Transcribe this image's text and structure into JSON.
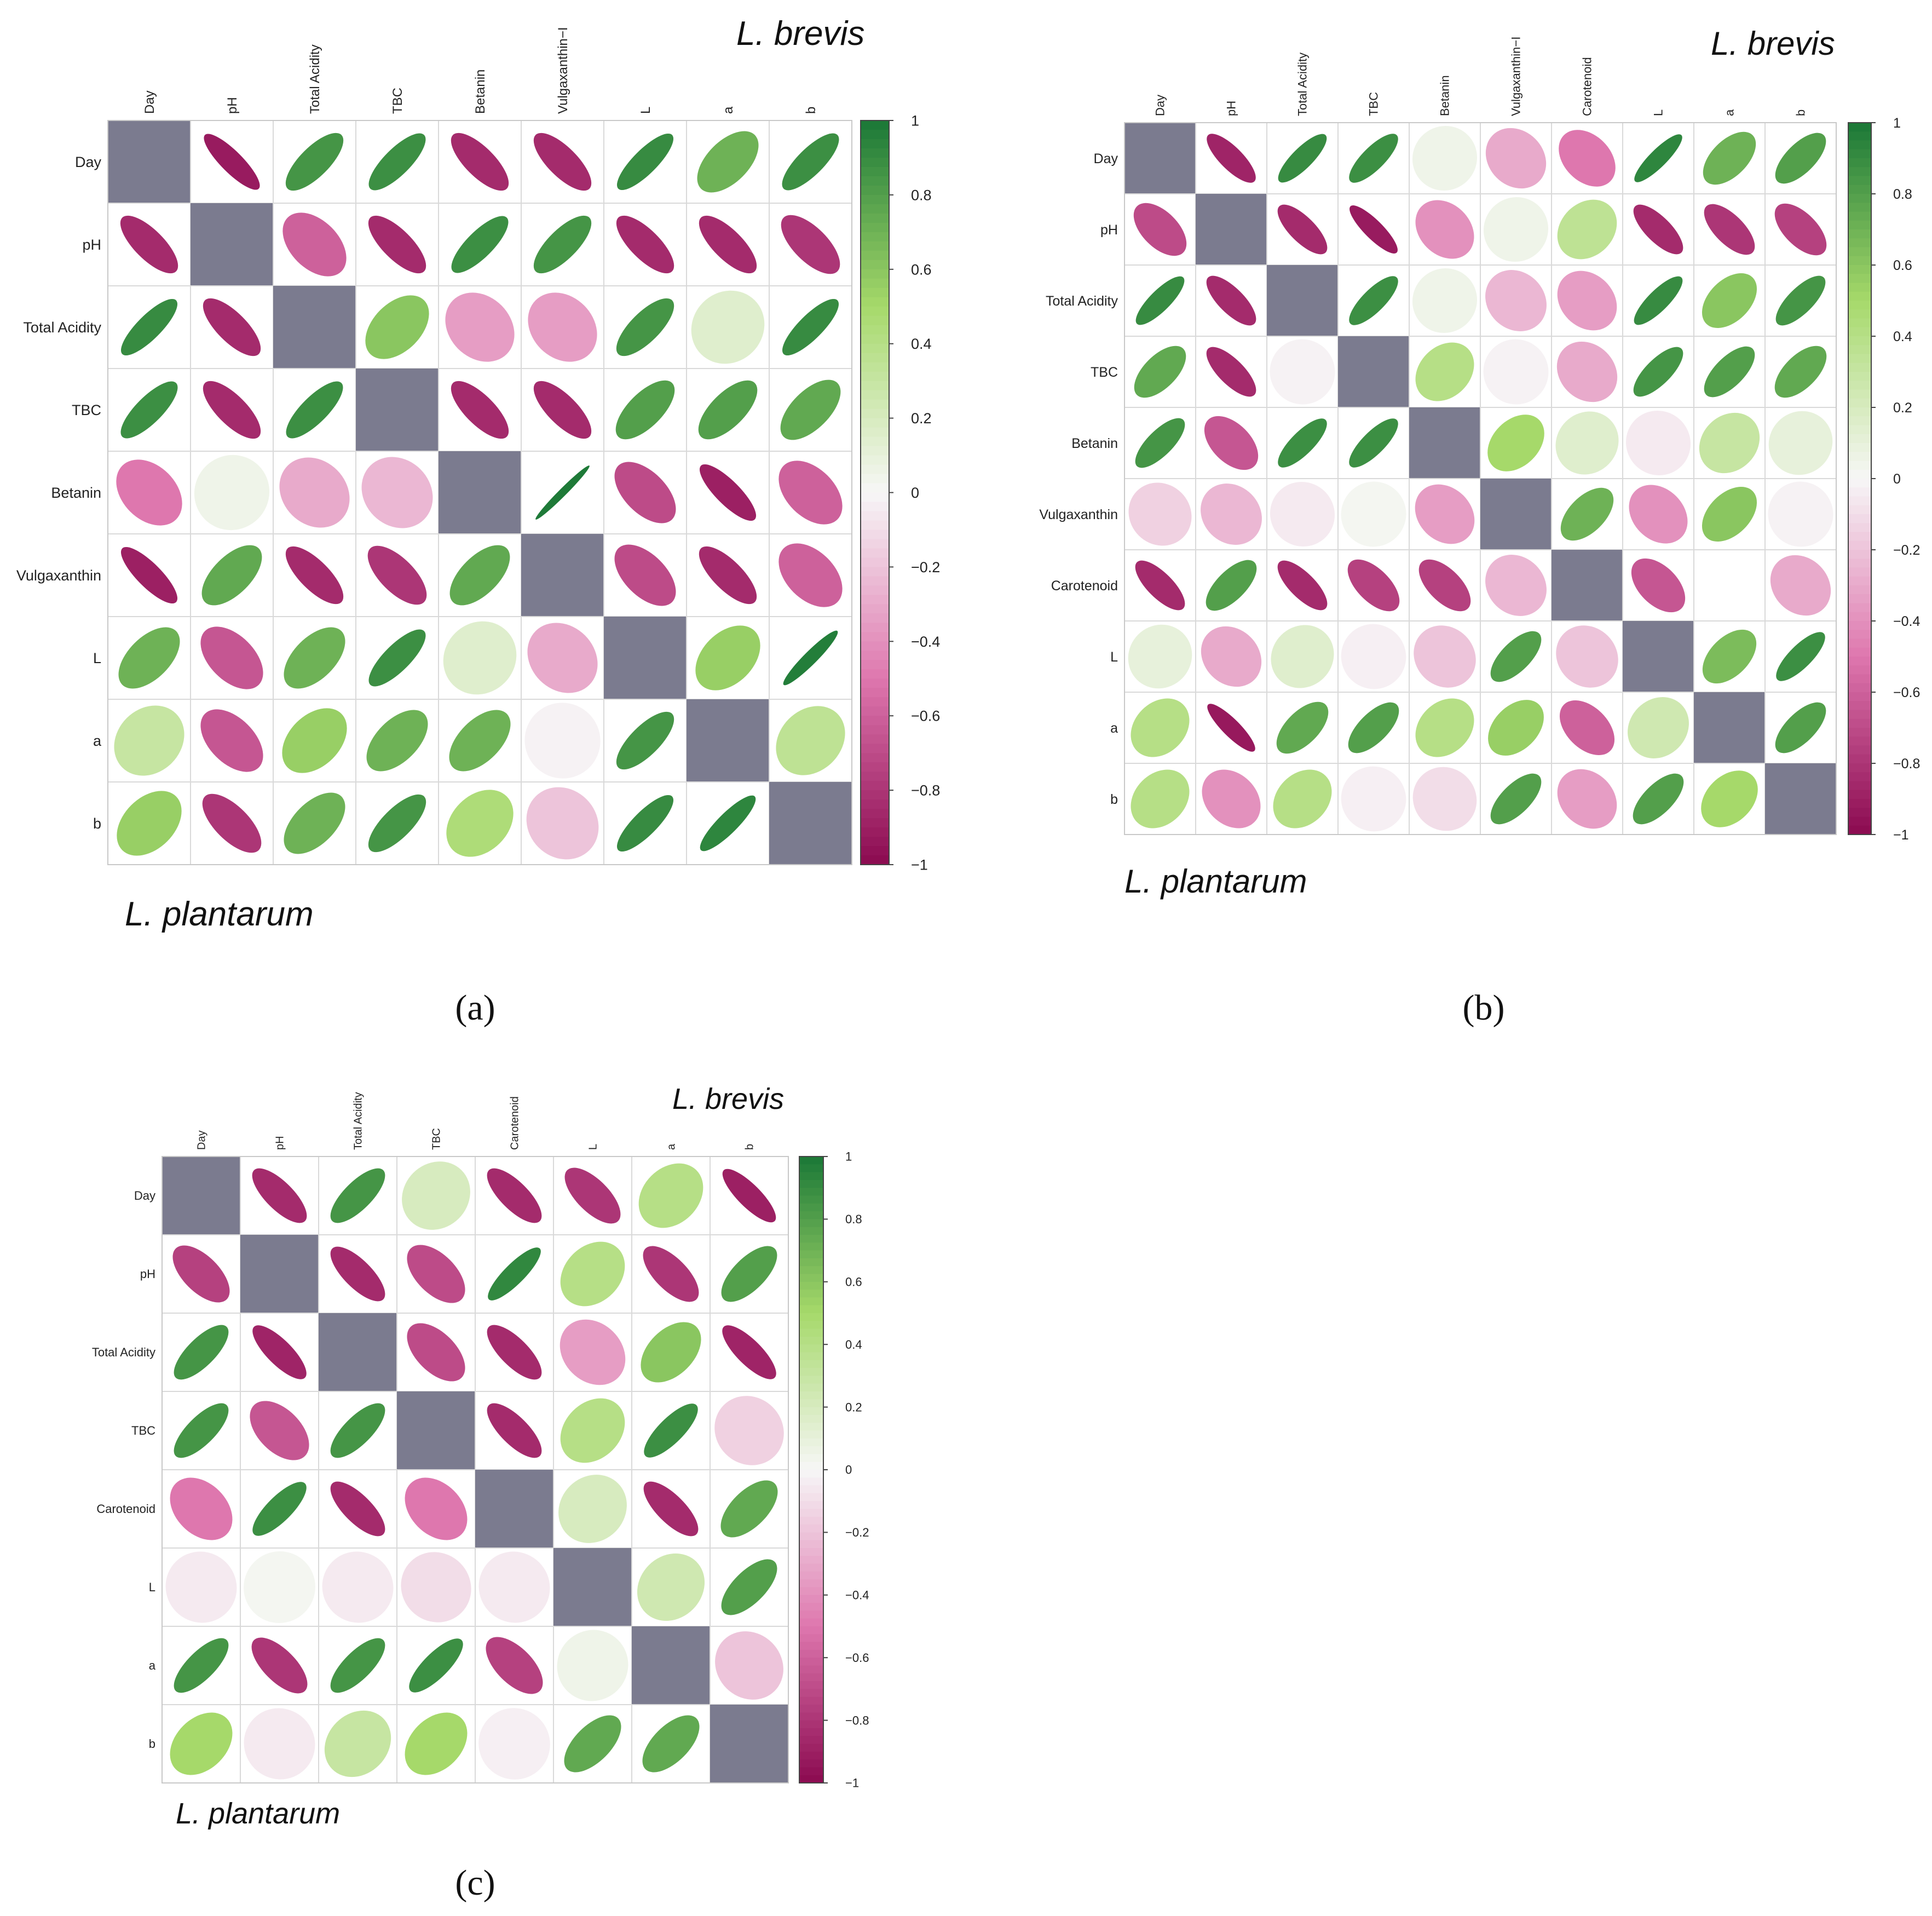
{
  "figure": {
    "panels": [
      {
        "id": "a",
        "caption": "(a)",
        "upper_label": "L. brevis",
        "lower_label": "L. plantarum"
      },
      {
        "id": "b",
        "caption": "(b)",
        "upper_label": "L. brevis",
        "lower_label": "L. plantarum"
      },
      {
        "id": "c",
        "caption": "(c)",
        "upper_label": "L. brevis",
        "lower_label": "L. plantarum"
      }
    ]
  },
  "colors": {
    "diagonal": "#7b7b8f",
    "neg_strong": "#8b0a50",
    "neg_mid": "#de77ae",
    "neutral": "#f7f7f7",
    "pos_mid": "#a6d96a",
    "pos_strong": "#1b7837",
    "grid": "#d9d9d9"
  },
  "chart_data": [
    {
      "type": "heatmap",
      "subtype": "correlation-ellipse-matrix",
      "panel": "a",
      "variables": [
        "Day",
        "pH",
        "Total Acidity",
        "TBC",
        "Betanin",
        "Vulgaxanthin−I",
        "L",
        "a",
        "b"
      ],
      "row_labels": [
        "Day",
        "pH",
        "Total Acidity",
        "TBC",
        "Betanin",
        "Vulgaxanthin",
        "L",
        "a",
        "b"
      ],
      "colorbar_ticks": [
        "1",
        "0.8",
        "0.6",
        "0.4",
        "0.2",
        "0",
        "−0.2",
        "−0.4",
        "−0.6",
        "−0.8",
        "−1"
      ],
      "colorbar_range": [
        -1,
        1
      ],
      "matrix": [
        [
          null,
          -0.92,
          0.85,
          0.88,
          -0.85,
          -0.85,
          0.9,
          0.7,
          0.88
        ],
        [
          -0.85,
          null,
          -0.6,
          -0.85,
          0.88,
          0.85,
          -0.85,
          -0.85,
          -0.8
        ],
        [
          0.9,
          -0.85,
          null,
          0.6,
          -0.35,
          -0.35,
          0.85,
          0.15,
          0.9
        ],
        [
          0.88,
          -0.85,
          0.88,
          null,
          -0.85,
          -0.85,
          0.8,
          0.8,
          0.75
        ],
        [
          -0.5,
          0.05,
          -0.3,
          -0.25,
          null,
          0.99,
          -0.7,
          -0.9,
          -0.6
        ],
        [
          -0.9,
          0.75,
          -0.85,
          -0.8,
          0.75,
          null,
          -0.7,
          -0.85,
          -0.6
        ],
        [
          0.7,
          -0.65,
          0.7,
          0.88,
          0.15,
          -0.3,
          null,
          0.55,
          0.97
        ],
        [
          0.3,
          -0.65,
          0.55,
          0.7,
          0.7,
          -0.02,
          0.85,
          null,
          0.35
        ],
        [
          0.55,
          -0.8,
          0.7,
          0.85,
          0.45,
          -0.2,
          0.9,
          0.93,
          null
        ]
      ]
    },
    {
      "type": "heatmap",
      "subtype": "correlation-ellipse-matrix",
      "panel": "b",
      "variables": [
        "Day",
        "pH",
        "Total Acidity",
        "TBC",
        "Betanin",
        "Vulgaxanthin−I",
        "Carotenoid",
        "L",
        "a",
        "b"
      ],
      "row_labels": [
        "Day",
        "pH",
        "Total Acidity",
        "TBC",
        "Betanin",
        "Vulgaxanthin",
        "Carotenoid",
        "L",
        "a",
        "b"
      ],
      "colorbar_ticks": [
        "1",
        "0.8",
        "0.6",
        "0.4",
        "0.2",
        "0",
        "−0.2",
        "−0.4",
        "−0.6",
        "−0.8",
        "−1"
      ],
      "colorbar_range": [
        -1,
        1
      ],
      "matrix": [
        [
          null,
          -0.88,
          0.9,
          0.88,
          0.05,
          -0.3,
          -0.5,
          0.93,
          0.7,
          0.8
        ],
        [
          -0.7,
          null,
          -0.85,
          -0.92,
          -0.4,
          0.05,
          0.35,
          -0.85,
          -0.8,
          -0.75
        ],
        [
          0.9,
          -0.85,
          null,
          0.88,
          0.05,
          -0.25,
          -0.35,
          0.9,
          0.6,
          0.85
        ],
        [
          0.75,
          -0.85,
          -0.02,
          null,
          0.4,
          -0.02,
          -0.3,
          0.85,
          0.8,
          0.75
        ],
        [
          0.85,
          -0.65,
          0.88,
          0.88,
          null,
          0.5,
          0.15,
          -0.05,
          0.3,
          0.1
        ],
        [
          -0.15,
          -0.25,
          -0.05,
          0.02,
          -0.35,
          null,
          0.7,
          -0.4,
          0.6,
          -0.02
        ],
        [
          -0.85,
          0.8,
          -0.85,
          -0.75,
          -0.75,
          -0.25,
          null,
          -0.65,
          null,
          -0.3
        ],
        [
          0.1,
          -0.3,
          0.15,
          -0.03,
          -0.2,
          0.8,
          -0.2,
          null,
          0.65,
          0.88
        ],
        [
          0.4,
          -0.93,
          0.75,
          0.8,
          0.4,
          0.55,
          -0.6,
          0.25,
          null,
          0.8
        ],
        [
          0.4,
          -0.4,
          0.4,
          -0.03,
          -0.1,
          0.8,
          -0.35,
          0.8,
          0.5,
          null
        ]
      ]
    },
    {
      "type": "heatmap",
      "subtype": "correlation-ellipse-matrix",
      "panel": "c",
      "variables": [
        "Day",
        "pH",
        "Total Acidity",
        "TBC",
        "Carotenoid",
        "L",
        "a",
        "b"
      ],
      "row_labels": [
        "Day",
        "pH",
        "Total Acidity",
        "TBC",
        "Carotenoid",
        "L",
        "a",
        "b"
      ],
      "colorbar_ticks": [
        "1",
        "0.8",
        "0.6",
        "0.4",
        "0.2",
        "0",
        "−0.2",
        "−0.4",
        "−0.6",
        "−0.8",
        "−1"
      ],
      "colorbar_range": [
        -1,
        1
      ],
      "matrix": [
        [
          null,
          -0.85,
          0.85,
          0.2,
          -0.85,
          -0.8,
          0.4,
          -0.9
        ],
        [
          -0.75,
          null,
          -0.85,
          -0.7,
          0.92,
          0.4,
          -0.8,
          0.8
        ],
        [
          0.85,
          -0.88,
          null,
          -0.7,
          -0.85,
          -0.35,
          0.6,
          -0.88
        ],
        [
          0.85,
          -0.65,
          0.85,
          null,
          -0.85,
          0.4,
          0.88,
          -0.15
        ],
        [
          -0.5,
          0.88,
          -0.85,
          -0.5,
          null,
          0.2,
          -0.85,
          0.75
        ],
        [
          -0.05,
          0.02,
          -0.05,
          -0.1,
          -0.05,
          null,
          0.25,
          0.8
        ],
        [
          0.85,
          -0.8,
          0.85,
          0.88,
          -0.75,
          0.05,
          null,
          -0.2
        ],
        [
          0.5,
          -0.05,
          0.3,
          0.5,
          -0.03,
          0.75,
          0.75,
          null
        ]
      ]
    }
  ]
}
